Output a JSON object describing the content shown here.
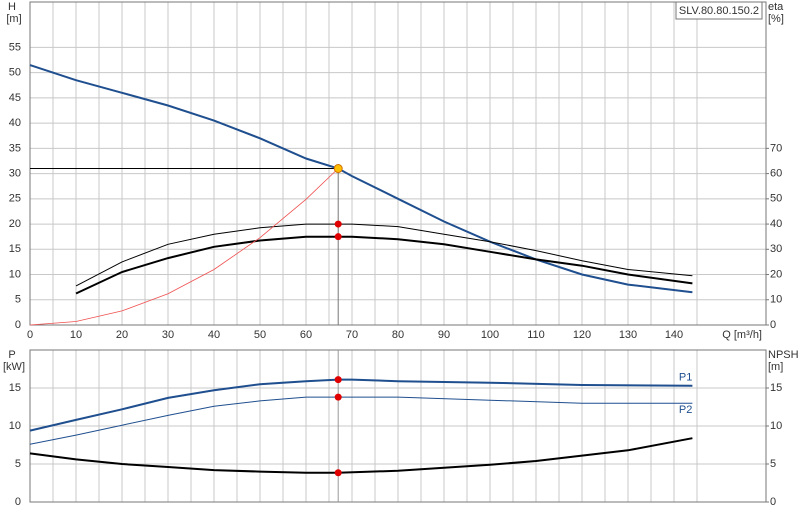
{
  "chart_data": [
    {
      "type": "line",
      "ylabel": "H",
      "yunit": "[m]",
      "y2label": "eta",
      "y2unit": "[%]",
      "xlabel": "Q [m³/h]",
      "box_label": "SLV.80.80.150.2",
      "xlim": [
        0,
        160
      ],
      "xticks": [
        0,
        10,
        20,
        30,
        40,
        50,
        60,
        70,
        80,
        90,
        100,
        110,
        120,
        130,
        140
      ],
      "ylim": [
        0,
        64
      ],
      "yticks": [
        0,
        5,
        10,
        15,
        20,
        25,
        30,
        35,
        40,
        45,
        50,
        55
      ],
      "y2lim": [
        0,
        128
      ],
      "y2ticks": [
        0,
        10,
        20,
        30,
        40,
        50,
        60,
        70
      ],
      "grid": true,
      "duty_point": {
        "x": 67,
        "y": 31
      },
      "series": [
        {
          "color": "#1f4f8f",
          "width": 2,
          "axis": "y",
          "x": [
            0,
            10,
            20,
            30,
            40,
            50,
            60,
            67,
            70,
            80,
            90,
            100,
            110,
            120,
            130,
            144
          ],
          "values": [
            51.5,
            48.5,
            46,
            43.5,
            40.5,
            37,
            33,
            31,
            29.5,
            25,
            20.5,
            16.5,
            13,
            10,
            8,
            6.5
          ]
        },
        {
          "color": "#000000",
          "width": 1,
          "axis": "y2",
          "x": [
            10,
            20,
            30,
            40,
            50,
            60,
            67,
            70,
            80,
            90,
            100,
            110,
            120,
            130,
            144
          ],
          "values": [
            15.5,
            25,
            32,
            36,
            38.5,
            40,
            40,
            40,
            39,
            36,
            33,
            29.5,
            25.5,
            22,
            19.5
          ]
        },
        {
          "color": "#000000",
          "width": 2,
          "axis": "y2",
          "x": [
            10,
            20,
            30,
            40,
            50,
            60,
            67,
            70,
            80,
            90,
            100,
            110,
            120,
            130,
            144
          ],
          "values": [
            12.5,
            21,
            26.5,
            31,
            33.5,
            35,
            35,
            35,
            34,
            32,
            29,
            26,
            23.5,
            20,
            16.5
          ]
        },
        {
          "color": "#f05050",
          "width": 0.8,
          "axis": "y",
          "x": [
            0,
            10,
            20,
            30,
            40,
            50,
            60,
            67
          ],
          "values": [
            0,
            0.7,
            2.8,
            6.2,
            11,
            17.3,
            24.9,
            31
          ]
        }
      ]
    },
    {
      "type": "line",
      "ylabel": "P",
      "yunit": "[kW]",
      "y2label": "NPSH",
      "y2unit": "[m]",
      "xlim": [
        0,
        160
      ],
      "xticks": [
        0,
        10,
        20,
        30,
        40,
        50,
        60,
        70,
        80,
        90,
        100,
        110,
        120,
        130,
        140
      ],
      "ylim": [
        0,
        20
      ],
      "yticks": [
        0,
        5,
        10,
        15
      ],
      "y2lim": [
        0,
        20
      ],
      "y2ticks": [
        0,
        5,
        10,
        15
      ],
      "grid": true,
      "duty_point": {
        "x": 67
      },
      "series": [
        {
          "name": "P1",
          "color": "#1f4f8f",
          "width": 2,
          "axis": "y",
          "x": [
            0,
            10,
            20,
            30,
            40,
            50,
            60,
            67,
            70,
            80,
            100,
            120,
            144
          ],
          "values": [
            9.4,
            10.8,
            12.2,
            13.7,
            14.7,
            15.5,
            15.9,
            16.1,
            16.1,
            15.9,
            15.7,
            15.4,
            15.3
          ]
        },
        {
          "name": "P2",
          "color": "#1f4f8f",
          "width": 1,
          "axis": "y",
          "x": [
            0,
            10,
            20,
            30,
            40,
            50,
            60,
            67,
            80,
            100,
            120,
            144
          ],
          "values": [
            7.6,
            8.8,
            10.1,
            11.4,
            12.6,
            13.3,
            13.8,
            13.8,
            13.8,
            13.4,
            13,
            13
          ]
        },
        {
          "color": "#000000",
          "width": 2,
          "axis": "y2",
          "x": [
            0,
            10,
            20,
            30,
            40,
            50,
            60,
            67,
            80,
            90,
            100,
            110,
            120,
            130,
            144
          ],
          "values": [
            6.4,
            5.6,
            5,
            4.6,
            4.2,
            4,
            3.85,
            3.85,
            4.1,
            4.5,
            4.9,
            5.4,
            6.1,
            6.8,
            8.4
          ]
        }
      ]
    }
  ]
}
